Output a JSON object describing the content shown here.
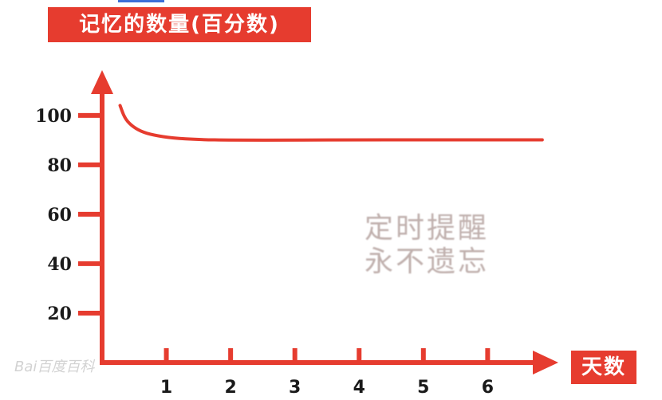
{
  "chart_data": {
    "type": "line",
    "title": "记忆的数量(百分数)",
    "xlabel": "天数",
    "ylabel": "记忆的数量(百分数)",
    "x_ticks": [
      1,
      2,
      3,
      4,
      5,
      6
    ],
    "y_ticks": [
      20,
      40,
      60,
      80,
      100
    ],
    "xlim": [
      0,
      7.1
    ],
    "ylim": [
      0,
      108
    ],
    "grid": false,
    "series": [
      {
        "color": "#e63c2f",
        "x": [
          0.28,
          0.35,
          0.45,
          0.6,
          0.8,
          1.1,
          1.5,
          2.0,
          3.0,
          4.0,
          5.0,
          6.0,
          6.85
        ],
        "y": [
          104,
          99,
          96,
          93.5,
          92,
          90.8,
          90.2,
          90,
          90,
          90.1,
          90.1,
          90.1,
          90.1
        ]
      }
    ],
    "annotation": [
      "定时提醒",
      "永不遗忘"
    ]
  },
  "colors": {
    "accent": "#e63c2f",
    "axis": "#e63c2f"
  },
  "watermark": "Bai百度百科"
}
